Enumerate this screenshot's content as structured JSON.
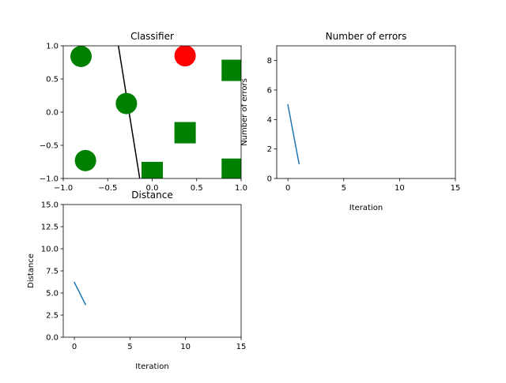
{
  "chart_data": [
    {
      "id": "classifier",
      "type": "scatter",
      "title": "Classifier",
      "xlabel": "",
      "ylabel": "",
      "xlim": [
        -1.0,
        1.0
      ],
      "ylim": [
        -1.0,
        1.0
      ],
      "xticks": [
        -1.0,
        -0.5,
        0.0,
        0.5,
        1.0
      ],
      "yticks": [
        -1.0,
        -0.5,
        0.0,
        0.5,
        1.0
      ],
      "tick_labels_x": [
        "−1.0",
        "−0.5",
        "0.0",
        "0.5",
        "1.0"
      ],
      "tick_labels_y": [
        "−1.0",
        "−0.5",
        "0.0",
        "0.5",
        "1.0"
      ],
      "grid": false,
      "points": [
        {
          "x": -0.8,
          "y": 0.84,
          "marker": "circle",
          "color": "#008000"
        },
        {
          "x": -0.29,
          "y": 0.13,
          "marker": "circle",
          "color": "#008000"
        },
        {
          "x": -0.75,
          "y": -0.73,
          "marker": "circle",
          "color": "#008000"
        },
        {
          "x": 0.37,
          "y": 0.85,
          "marker": "circle",
          "color": "#ff0000"
        },
        {
          "x": 0.9,
          "y": 0.63,
          "marker": "square",
          "color": "#008000"
        },
        {
          "x": 0.37,
          "y": -0.31,
          "marker": "square",
          "color": "#008000"
        },
        {
          "x": 0.0,
          "y": -0.91,
          "marker": "square",
          "color": "#008000"
        },
        {
          "x": 0.9,
          "y": -0.86,
          "marker": "square",
          "color": "#008000"
        }
      ],
      "decision_line": {
        "x": [
          -0.38,
          -0.14
        ],
        "y": [
          1.0,
          -1.0
        ],
        "color": "#000000"
      }
    },
    {
      "id": "errors",
      "type": "line",
      "title": "Number of errors",
      "xlabel": "Iteration",
      "ylabel": "Number of errors",
      "xlim": [
        -1,
        15
      ],
      "ylim": [
        0,
        9
      ],
      "xticks": [
        0,
        5,
        10,
        15
      ],
      "yticks": [
        0,
        2,
        4,
        6,
        8
      ],
      "tick_labels_x": [
        "0",
        "5",
        "10",
        "15"
      ],
      "tick_labels_y": [
        "0",
        "2",
        "4",
        "6",
        "8"
      ],
      "grid": false,
      "series": [
        {
          "x": [
            0,
            1
          ],
          "values": [
            5,
            1
          ],
          "color": "#1f77b4"
        }
      ]
    },
    {
      "id": "distance",
      "type": "line",
      "title": "Distance",
      "xlabel": "Iteration",
      "ylabel": "Distance",
      "xlim": [
        -1,
        15
      ],
      "ylim": [
        0,
        15
      ],
      "xticks": [
        0,
        5,
        10,
        15
      ],
      "yticks": [
        0.0,
        2.5,
        5.0,
        7.5,
        10.0,
        12.5,
        15.0
      ],
      "tick_labels_x": [
        "0",
        "5",
        "10",
        "15"
      ],
      "tick_labels_y": [
        "0.0",
        "2.5",
        "5.0",
        "7.5",
        "10.0",
        "12.5",
        "15.0"
      ],
      "grid": false,
      "series": [
        {
          "x": [
            0,
            1
          ],
          "values": [
            6.2,
            3.7
          ],
          "color": "#1f77b4"
        }
      ]
    }
  ]
}
